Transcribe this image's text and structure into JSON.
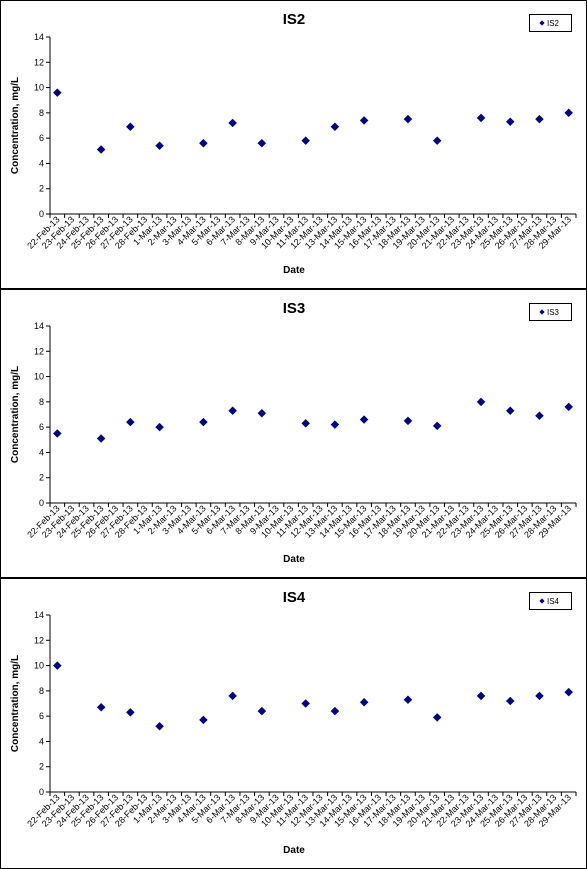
{
  "chart_data": [
    {
      "type": "scatter",
      "title": "IS2",
      "xlabel": "Date",
      "ylabel": "Concentration, mg/L",
      "ylim": [
        0,
        14
      ],
      "yticks": [
        0,
        2,
        4,
        6,
        8,
        10,
        12,
        14
      ],
      "grid": false,
      "legend_position": "top-right",
      "categories": [
        "22-Feb-13",
        "23-Feb-13",
        "24-Feb-13",
        "25-Feb-13",
        "26-Feb-13",
        "27-Feb-13",
        "28-Feb-13",
        "1-Mar-13",
        "2-Mar-13",
        "3-Mar-13",
        "4-Mar-13",
        "5-Mar-13",
        "6-Mar-13",
        "7-Mar-13",
        "8-Mar-13",
        "9-Mar-13",
        "10-Mar-13",
        "11-Mar-13",
        "12-Mar-13",
        "13-Mar-13",
        "14-Mar-13",
        "15-Mar-13",
        "16-Mar-13",
        "17-Mar-13",
        "18-Mar-13",
        "19-Mar-13",
        "20-Mar-13",
        "21-Mar-13",
        "22-Mar-13",
        "23-Mar-13",
        "24-Mar-13",
        "25-Mar-13",
        "26-Mar-13",
        "27-Mar-13",
        "28-Mar-13",
        "29-Mar-13"
      ],
      "series": [
        {
          "name": "IS2",
          "color": "#000080",
          "marker": "diamond",
          "x": [
            "22-Feb-13",
            "25-Feb-13",
            "27-Feb-13",
            "1-Mar-13",
            "4-Mar-13",
            "6-Mar-13",
            "8-Mar-13",
            "11-Mar-13",
            "13-Mar-13",
            "15-Mar-13",
            "18-Mar-13",
            "20-Mar-13",
            "23-Mar-13",
            "25-Mar-13",
            "27-Mar-13",
            "29-Mar-13"
          ],
          "y": [
            9.6,
            5.1,
            6.9,
            5.4,
            5.6,
            7.2,
            5.6,
            5.8,
            6.9,
            7.4,
            7.5,
            5.8,
            7.6,
            7.3,
            7.5,
            8.0
          ]
        }
      ]
    },
    {
      "type": "scatter",
      "title": "IS3",
      "xlabel": "Date",
      "ylabel": "Concentration, mg/L",
      "ylim": [
        0,
        14
      ],
      "yticks": [
        0,
        2,
        4,
        6,
        8,
        10,
        12,
        14
      ],
      "grid": false,
      "legend_position": "top-right",
      "categories": [
        "22-Feb-13",
        "23-Feb-13",
        "24-Feb-13",
        "25-Feb-13",
        "26-Feb-13",
        "27-Feb-13",
        "28-Feb-13",
        "1-Mar-13",
        "2-Mar-13",
        "3-Mar-13",
        "4-Mar-13",
        "5-Mar-13",
        "6-Mar-13",
        "7-Mar-13",
        "8-Mar-13",
        "9-Mar-13",
        "10-Mar-13",
        "11-Mar-13",
        "12-Mar-13",
        "13-Mar-13",
        "14-Mar-13",
        "15-Mar-13",
        "16-Mar-13",
        "17-Mar-13",
        "18-Mar-13",
        "19-Mar-13",
        "20-Mar-13",
        "21-Mar-13",
        "22-Mar-13",
        "23-Mar-13",
        "24-Mar-13",
        "25-Mar-13",
        "26-Mar-13",
        "27-Mar-13",
        "28-Mar-13",
        "29-Mar-13"
      ],
      "series": [
        {
          "name": "IS3",
          "color": "#000080",
          "marker": "diamond",
          "x": [
            "22-Feb-13",
            "25-Feb-13",
            "27-Feb-13",
            "1-Mar-13",
            "4-Mar-13",
            "6-Mar-13",
            "8-Mar-13",
            "11-Mar-13",
            "13-Mar-13",
            "15-Mar-13",
            "18-Mar-13",
            "20-Mar-13",
            "23-Mar-13",
            "25-Mar-13",
            "27-Mar-13",
            "29-Mar-13"
          ],
          "y": [
            5.5,
            5.1,
            6.4,
            6.0,
            6.4,
            7.3,
            7.1,
            6.3,
            6.2,
            6.6,
            6.5,
            6.1,
            8.0,
            7.3,
            6.9,
            7.6
          ]
        }
      ]
    },
    {
      "type": "scatter",
      "title": "IS4",
      "xlabel": "Date",
      "ylabel": "Concentration, mg/L",
      "ylim": [
        0,
        14
      ],
      "yticks": [
        0,
        2,
        4,
        6,
        8,
        10,
        12,
        14
      ],
      "grid": false,
      "legend_position": "top-right",
      "categories": [
        "22-Feb-13",
        "23-Feb-13",
        "24-Feb-13",
        "25-Feb-13",
        "26-Feb-13",
        "27-Feb-13",
        "28-Feb-13",
        "1-Mar-13",
        "2-Mar-13",
        "3-Mar-13",
        "4-Mar-13",
        "5-Mar-13",
        "6-Mar-13",
        "7-Mar-13",
        "8-Mar-13",
        "9-Mar-13",
        "10-Mar-13",
        "11-Mar-13",
        "12-Mar-13",
        "13-Mar-13",
        "14-Mar-13",
        "15-Mar-13",
        "16-Mar-13",
        "17-Mar-13",
        "18-Mar-13",
        "19-Mar-13",
        "20-Mar-13",
        "21-Mar-13",
        "22-Mar-13",
        "23-Mar-13",
        "24-Mar-13",
        "25-Mar-13",
        "26-Mar-13",
        "27-Mar-13",
        "28-Mar-13",
        "29-Mar-13"
      ],
      "series": [
        {
          "name": "IS4",
          "color": "#000080",
          "marker": "diamond",
          "x": [
            "22-Feb-13",
            "25-Feb-13",
            "27-Feb-13",
            "1-Mar-13",
            "4-Mar-13",
            "6-Mar-13",
            "8-Mar-13",
            "11-Mar-13",
            "13-Mar-13",
            "15-Mar-13",
            "18-Mar-13",
            "20-Mar-13",
            "23-Mar-13",
            "25-Mar-13",
            "27-Mar-13",
            "29-Mar-13"
          ],
          "y": [
            10.0,
            6.7,
            6.3,
            5.2,
            5.7,
            7.6,
            6.4,
            7.0,
            6.4,
            7.1,
            7.3,
            5.9,
            7.6,
            7.2,
            7.6,
            7.9
          ]
        }
      ]
    }
  ]
}
